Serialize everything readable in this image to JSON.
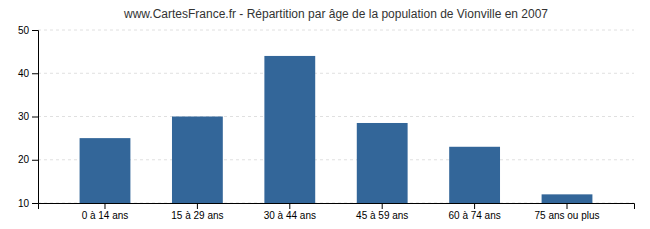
{
  "chart_data": {
    "type": "bar",
    "title": "www.CartesFrance.fr - Répartition par âge de la population de Vionville en 2007",
    "categories": [
      "0 à 14 ans",
      "15 à 29 ans",
      "30 à 44 ans",
      "45 à 59 ans",
      "60 à 74 ans",
      "75 ans ou plus"
    ],
    "values": [
      25.0,
      30.0,
      44.0,
      28.5,
      23.0,
      12.0
    ],
    "color": "#336699",
    "ylim": [
      10,
      50
    ],
    "yticks": [
      10,
      20,
      30,
      40,
      50
    ],
    "grid": true
  }
}
